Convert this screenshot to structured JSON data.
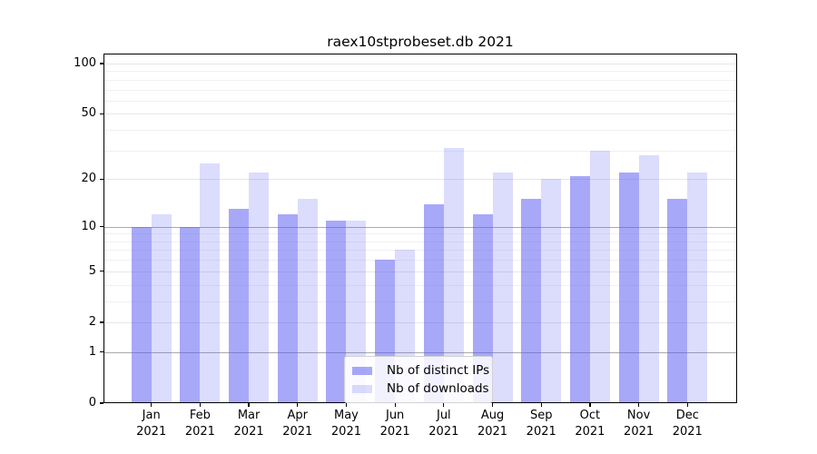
{
  "chart_data": {
    "type": "bar",
    "title": "raex10stprobeset.db 2021",
    "categories": [
      "Jan",
      "Feb",
      "Mar",
      "Apr",
      "May",
      "Jun",
      "Jul",
      "Aug",
      "Sep",
      "Oct",
      "Nov",
      "Dec"
    ],
    "category_year": "2021",
    "series": [
      {
        "name": "Nb of distinct IPs",
        "values": [
          10,
          10,
          13,
          12,
          11,
          6,
          14,
          12,
          15,
          21,
          22,
          15
        ],
        "color_solid": "#a9a9f7",
        "color_rgba": "rgba(88,88,243,0.52)"
      },
      {
        "name": "Nb of downloads",
        "values": [
          12,
          25,
          22,
          15,
          11,
          7,
          31,
          22,
          20,
          30,
          28,
          22
        ],
        "color_solid": "#dcdcfa",
        "color_rgba": "rgba(88,88,243,0.21)"
      }
    ],
    "yscale": "log(1+x)",
    "yticks": [
      0,
      1,
      2,
      5,
      10,
      20,
      50,
      100
    ],
    "ylim": [
      0,
      115
    ],
    "xlabel": "",
    "ylabel": "",
    "grid": true,
    "gridlines": {
      "minor": [
        3,
        4,
        6,
        7,
        8,
        9,
        30,
        40,
        60,
        70,
        80,
        90
      ],
      "emphasized": [
        1,
        10
      ]
    },
    "legend_position": "lower center",
    "colors": {
      "grid_major": "#e6e6e6",
      "grid_minor": "#f1f1f1",
      "grid_emphasized": "#ababab",
      "spine": "#000000",
      "background": "#ffffff"
    }
  }
}
